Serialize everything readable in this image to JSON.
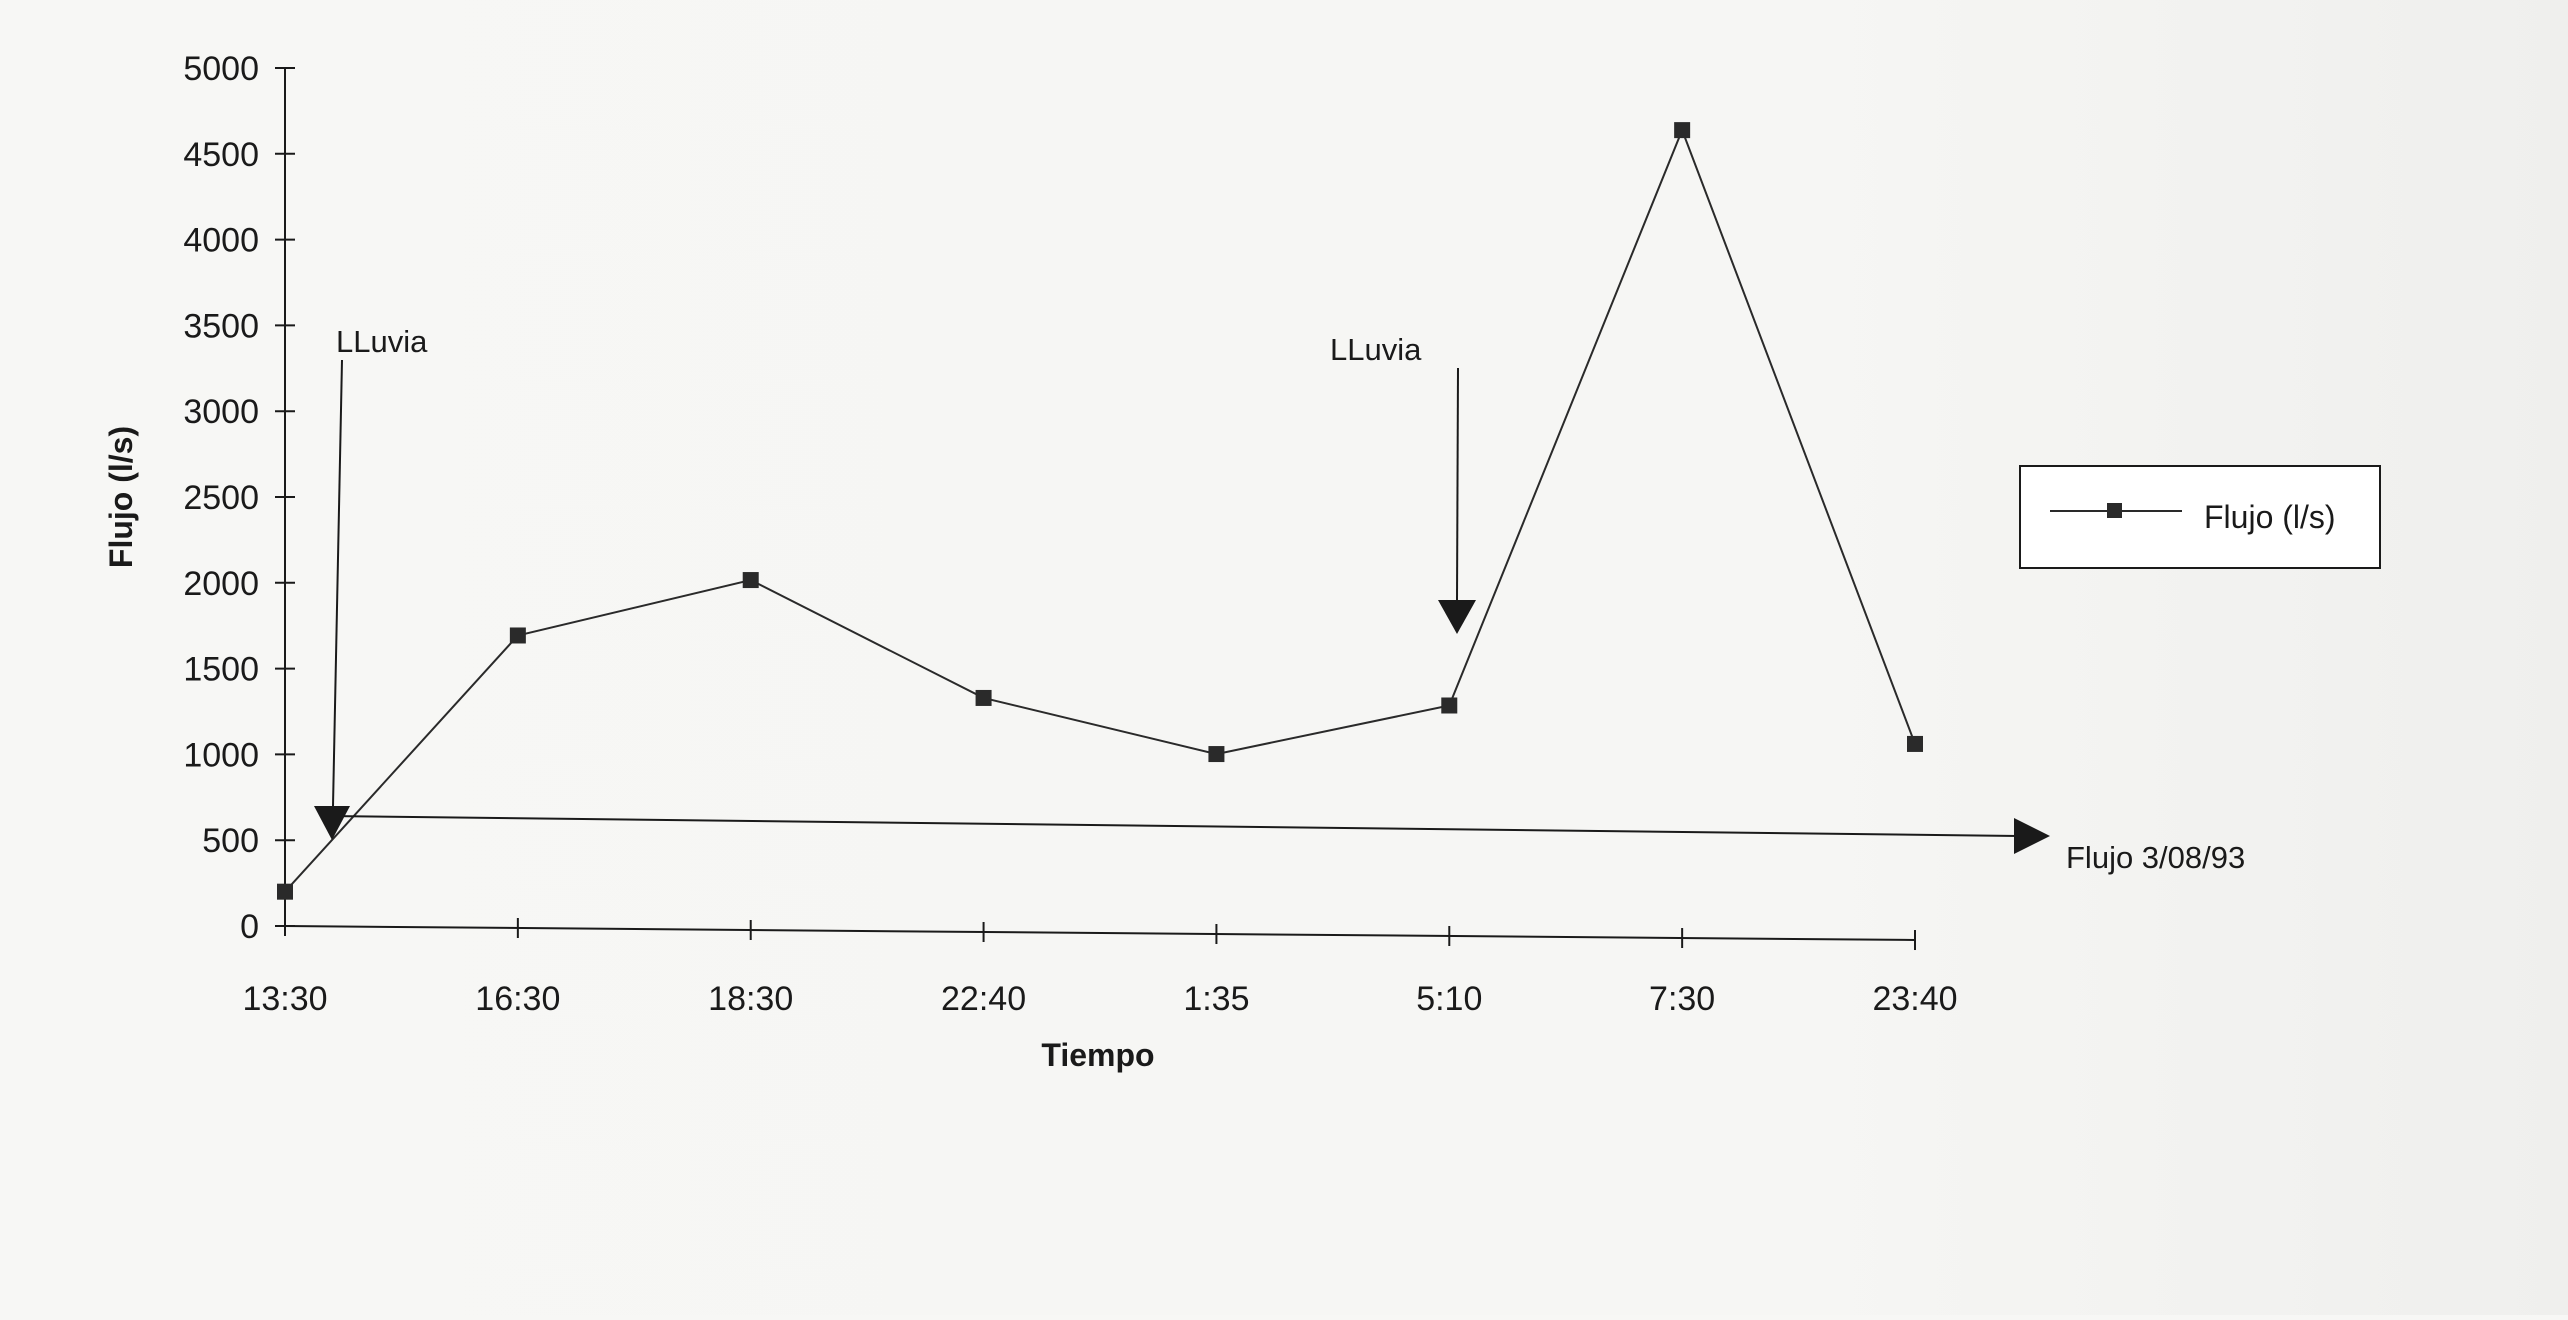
{
  "chart_data": {
    "type": "line",
    "title": "",
    "xlabel": "Tiempo",
    "ylabel": "Flujo (l/s)",
    "categories": [
      "13:30",
      "16:30",
      "18:30",
      "22:40",
      "1:35",
      "5:10",
      "7:30",
      "23:40"
    ],
    "series": [
      {
        "name": "Flujo (l/s)",
        "values": [
          200,
          1700,
          2030,
          1350,
          1030,
          1320,
          4680,
          1110
        ]
      }
    ],
    "ylim": [
      0,
      5000
    ],
    "yticks": [
      "0",
      "500",
      "1000",
      "1500",
      "2000",
      "2500",
      "3000",
      "3500",
      "4000",
      "4500",
      "5000"
    ],
    "grid": false,
    "legend_position": "right",
    "annotations": [
      {
        "label": "LLuvia",
        "category": "13:30"
      },
      {
        "label": "LLuvia",
        "category": "5:10"
      },
      {
        "label": "Flujo 3/08/93"
      }
    ]
  }
}
